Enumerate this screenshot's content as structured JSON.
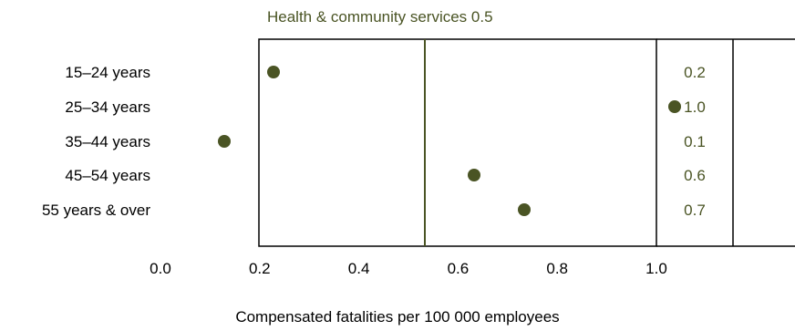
{
  "colors": {
    "dot": "#4a5424",
    "reference_line": "#4a5424",
    "reference_label": "#4a5424",
    "value_label": "#4a5424",
    "frame": "#000000",
    "axis_text": "#000000"
  },
  "chart_data": {
    "type": "scatter",
    "title": "",
    "xlabel": "Compensated fatalities per 100 000 employees",
    "ylabel": "",
    "xlim": [
      0.0,
      1.0
    ],
    "x_ticks": [
      "0.0",
      "0.2",
      "0.4",
      "0.6",
      "0.8",
      "1.0"
    ],
    "categories": [
      "15–24 years",
      "25–34 years",
      "35–44 years",
      "45–54 years",
      "55 years & over"
    ],
    "values": [
      0.2,
      1.0,
      0.1,
      0.6,
      0.7
    ],
    "value_labels": [
      "0.2",
      "1.0",
      "0.1",
      "0.6",
      "0.7"
    ],
    "reference_line": {
      "label": "Health & community services 0.5",
      "value": 0.5
    },
    "grid": false,
    "legend": "none"
  }
}
